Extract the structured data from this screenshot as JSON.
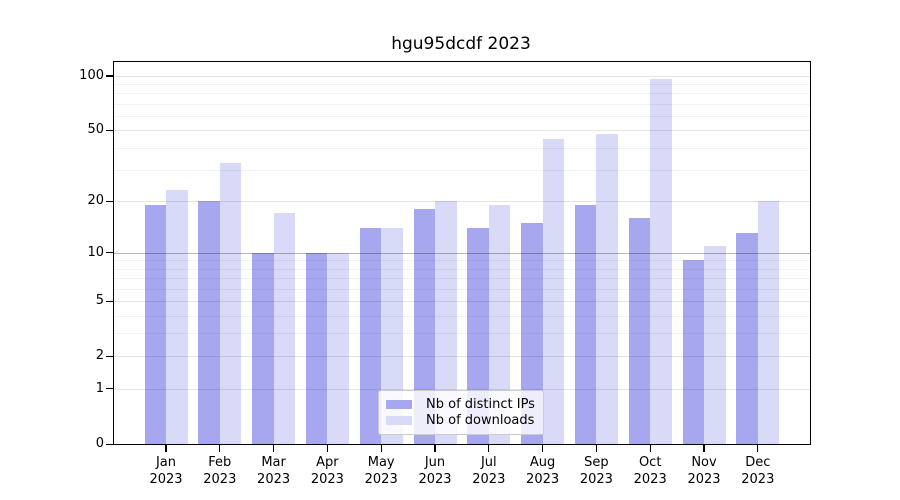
{
  "title": "hgu95dcdf 2023",
  "chart_data": {
    "type": "bar",
    "title": "hgu95dcdf 2023",
    "year": "2023",
    "categories": [
      "Jan",
      "Feb",
      "Mar",
      "Apr",
      "May",
      "Jun",
      "Jul",
      "Aug",
      "Sep",
      "Oct",
      "Nov",
      "Dec"
    ],
    "series": [
      {
        "name": "Nb of distinct IPs",
        "color": "#a7a7f0",
        "values": [
          19,
          20,
          10,
          10,
          14,
          18,
          14,
          15,
          19,
          16,
          9,
          13
        ]
      },
      {
        "name": "Nb of downloads",
        "color": "#d9d9f8",
        "values": [
          23,
          33,
          17,
          10,
          14,
          20,
          19,
          45,
          48,
          96,
          11,
          20
        ]
      }
    ],
    "xlabel": "",
    "ylabel": "",
    "yscale": "log1p",
    "ylim": [
      0,
      119
    ],
    "yticks": [
      0,
      1,
      2,
      5,
      10,
      20,
      50,
      100
    ],
    "minor_gridlines": [
      3,
      4,
      6,
      7,
      8,
      9,
      30,
      40,
      60,
      70,
      80,
      90
    ],
    "grid": true,
    "legend_position": "lower-center-inside"
  }
}
